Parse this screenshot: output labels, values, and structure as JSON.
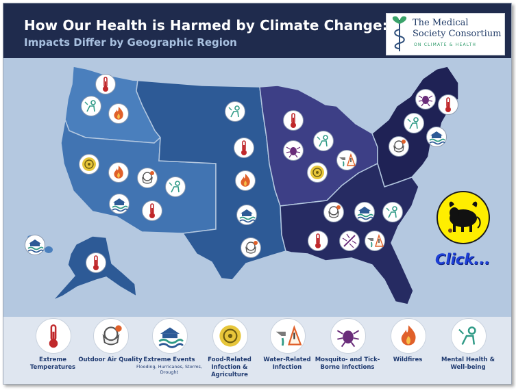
{
  "header": {
    "title": "How Our Health is Harmed by Climate Change:",
    "subtitle": "Impacts Differ by Geographic Region"
  },
  "logo": {
    "line1": "The Medical",
    "line2": "Society Consortium",
    "line3": "ON CLIMATE & HEALTH"
  },
  "click_label": "Click...",
  "colors": {
    "header_bg": "#1f2b4d",
    "ocean": "#b4c8e0",
    "northwest": "#4a7fbd",
    "southwest": "#4174b2",
    "great_plains": "#2d5a96",
    "midwest": "#3d3f86",
    "northeast": "#1f2255",
    "southeast": "#262b62",
    "alaska": "#2d5a96",
    "hawaii": "#4a7fbd",
    "legend_text": "#1f3a70",
    "accent_orange": "#e0602a",
    "icon_green": "#2f9a86",
    "icon_red": "#c0282b"
  },
  "regions": [
    {
      "name": "Northwest",
      "icons": [
        "thermometer-icon",
        "mental-health-icon",
        "wildfire-icon"
      ]
    },
    {
      "name": "Southwest",
      "icons": [
        "food-infection-icon",
        "wildfire-icon",
        "air-quality-icon",
        "mental-health-icon",
        "extreme-events-icon",
        "thermometer-icon"
      ]
    },
    {
      "name": "Great Plains",
      "icons": [
        "mental-health-icon",
        "thermometer-icon",
        "wildfire-icon",
        "extreme-events-icon",
        "air-quality-icon"
      ]
    },
    {
      "name": "Midwest",
      "icons": [
        "thermometer-icon",
        "mental-health-icon",
        "tick-icon",
        "water-infection-icon",
        "food-infection-icon"
      ]
    },
    {
      "name": "Northeast",
      "icons": [
        "tick-icon",
        "thermometer-icon",
        "mental-health-icon",
        "air-quality-icon",
        "extreme-events-icon"
      ]
    },
    {
      "name": "Southeast",
      "icons": [
        "air-quality-icon",
        "extreme-events-icon",
        "mental-health-icon",
        "thermometer-icon",
        "mosquito-icon",
        "water-infection-icon"
      ]
    },
    {
      "name": "Alaska",
      "icons": [
        "thermometer-icon"
      ]
    },
    {
      "name": "Hawaii",
      "icons": [
        "extreme-events-icon"
      ]
    }
  ],
  "legend": [
    {
      "icon": "thermometer-icon",
      "label": "Extreme Temperatures",
      "sub": ""
    },
    {
      "icon": "air-quality-icon",
      "label": "Outdoor Air Quality",
      "sub": ""
    },
    {
      "icon": "extreme-events-icon",
      "label": "Extreme Events",
      "sub": "Flooding, Hurricanes, Storms, Drought"
    },
    {
      "icon": "food-infection-icon",
      "label": "Food-Related Infection & Agriculture",
      "sub": ""
    },
    {
      "icon": "water-infection-icon",
      "label": "Water-Related Infection",
      "sub": ""
    },
    {
      "icon": "tick-icon",
      "label": "Mosquito- and Tick-Borne Infections",
      "sub": ""
    },
    {
      "icon": "wildfire-icon",
      "label": "Wildfires",
      "sub": ""
    },
    {
      "icon": "mental-health-icon",
      "label": "Mental Health & Well-being",
      "sub": ""
    }
  ]
}
